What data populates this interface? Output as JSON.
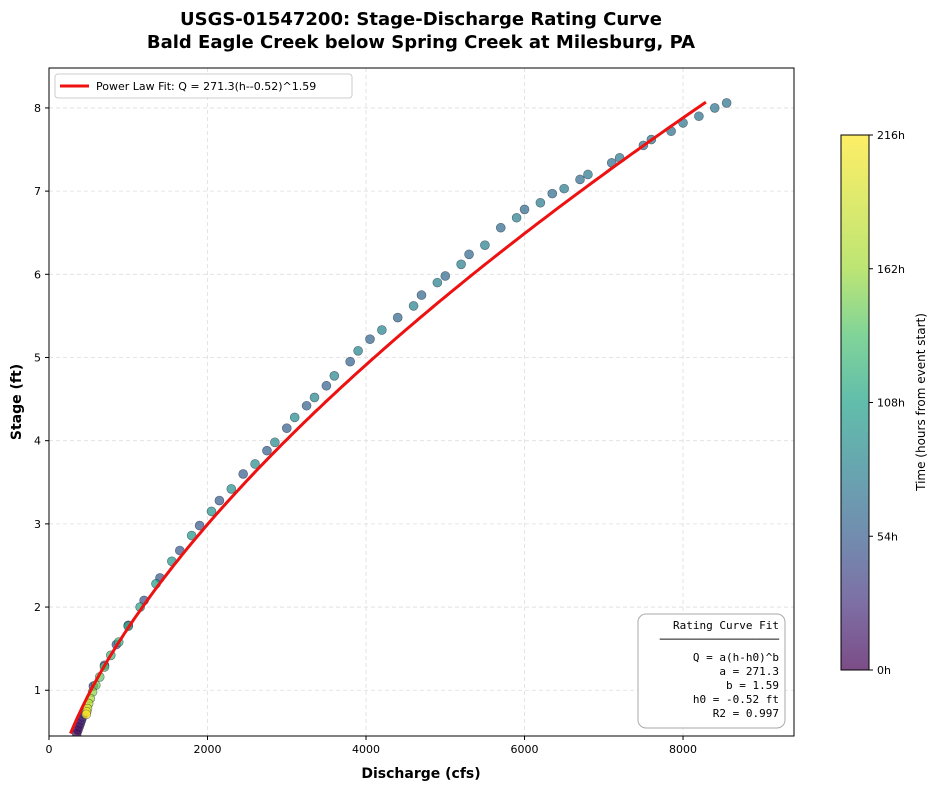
{
  "chart_data": {
    "type": "scatter",
    "title_line1": "USGS-01547200: Stage-Discharge Rating Curve",
    "title_line2": "Bald Eagle Creek below Spring Creek at Milesburg, PA",
    "xlabel": "Discharge (cfs)",
    "ylabel": "Stage (ft)",
    "xlim": [
      0,
      9400
    ],
    "ylim": [
      0.45,
      8.48
    ],
    "x_ticks": [
      0,
      2000,
      4000,
      6000,
      8000
    ],
    "y_ticks": [
      1,
      2,
      3,
      4,
      5,
      6,
      7,
      8
    ],
    "grid": true,
    "legend_position": "top-left",
    "series": [
      {
        "name": "Power Law Fit: Q = 271.3(h--0.52)^1.59",
        "type": "line",
        "color": "#ee1111",
        "model": {
          "a": 271.3,
          "b": 1.59,
          "h0": -0.52
        },
        "stage_range": [
          0.48,
          8.07
        ]
      },
      {
        "type": "scatter",
        "color_by": "time_hours",
        "points": [
          {
            "q": 350,
            "h": 0.48,
            "t": 3
          },
          {
            "q": 365,
            "h": 0.52,
            "t": 6
          },
          {
            "q": 380,
            "h": 0.56,
            "t": 10
          },
          {
            "q": 395,
            "h": 0.6,
            "t": 14
          },
          {
            "q": 410,
            "h": 0.64,
            "t": 19
          },
          {
            "q": 425,
            "h": 0.68,
            "t": 25
          },
          {
            "q": 440,
            "h": 0.72,
            "t": 30
          },
          {
            "q": 560,
            "h": 1.05,
            "t": 40
          },
          {
            "q": 700,
            "h": 1.3,
            "t": 48
          },
          {
            "q": 850,
            "h": 1.55,
            "t": 52
          },
          {
            "q": 1000,
            "h": 1.78,
            "t": 55
          },
          {
            "q": 1200,
            "h": 2.08,
            "t": 57
          },
          {
            "q": 1400,
            "h": 2.35,
            "t": 59
          },
          {
            "q": 1650,
            "h": 2.68,
            "t": 60
          },
          {
            "q": 1900,
            "h": 2.98,
            "t": 61
          },
          {
            "q": 2150,
            "h": 3.28,
            "t": 62
          },
          {
            "q": 2450,
            "h": 3.6,
            "t": 63
          },
          {
            "q": 2750,
            "h": 3.88,
            "t": 64
          },
          {
            "q": 3000,
            "h": 4.15,
            "t": 65
          },
          {
            "q": 3250,
            "h": 4.42,
            "t": 66
          },
          {
            "q": 3500,
            "h": 4.66,
            "t": 67
          },
          {
            "q": 3800,
            "h": 4.95,
            "t": 68
          },
          {
            "q": 4050,
            "h": 5.22,
            "t": 69
          },
          {
            "q": 4400,
            "h": 5.48,
            "t": 70
          },
          {
            "q": 4700,
            "h": 5.75,
            "t": 71
          },
          {
            "q": 5000,
            "h": 5.98,
            "t": 72
          },
          {
            "q": 5300,
            "h": 6.24,
            "t": 73
          },
          {
            "q": 5700,
            "h": 6.56,
            "t": 74
          },
          {
            "q": 6000,
            "h": 6.78,
            "t": 75
          },
          {
            "q": 6350,
            "h": 6.97,
            "t": 76
          },
          {
            "q": 6700,
            "h": 7.14,
            "t": 77
          },
          {
            "q": 7100,
            "h": 7.34,
            "t": 78
          },
          {
            "q": 7500,
            "h": 7.55,
            "t": 79
          },
          {
            "q": 7850,
            "h": 7.72,
            "t": 80
          },
          {
            "q": 8200,
            "h": 7.9,
            "t": 81
          },
          {
            "q": 8550,
            "h": 8.06,
            "t": 82
          },
          {
            "q": 8400,
            "h": 8.0,
            "t": 84
          },
          {
            "q": 8000,
            "h": 7.82,
            "t": 86
          },
          {
            "q": 7600,
            "h": 7.62,
            "t": 87
          },
          {
            "q": 7200,
            "h": 7.4,
            "t": 88
          },
          {
            "q": 6800,
            "h": 7.2,
            "t": 89
          },
          {
            "q": 6500,
            "h": 7.03,
            "t": 90
          },
          {
            "q": 6200,
            "h": 6.86,
            "t": 91
          },
          {
            "q": 5900,
            "h": 6.68,
            "t": 92
          },
          {
            "q": 5500,
            "h": 6.35,
            "t": 93
          },
          {
            "q": 5200,
            "h": 6.12,
            "t": 94
          },
          {
            "q": 4900,
            "h": 5.9,
            "t": 95
          },
          {
            "q": 4600,
            "h": 5.62,
            "t": 96
          },
          {
            "q": 4200,
            "h": 5.33,
            "t": 97
          },
          {
            "q": 3900,
            "h": 5.08,
            "t": 98
          },
          {
            "q": 3600,
            "h": 4.78,
            "t": 99
          },
          {
            "q": 3350,
            "h": 4.52,
            "t": 100
          },
          {
            "q": 3100,
            "h": 4.28,
            "t": 102
          },
          {
            "q": 2850,
            "h": 3.98,
            "t": 104
          },
          {
            "q": 2600,
            "h": 3.72,
            "t": 106
          },
          {
            "q": 2300,
            "h": 3.42,
            "t": 108
          },
          {
            "q": 2050,
            "h": 3.15,
            "t": 110
          },
          {
            "q": 1800,
            "h": 2.86,
            "t": 113
          },
          {
            "q": 1550,
            "h": 2.55,
            "t": 116
          },
          {
            "q": 1350,
            "h": 2.28,
            "t": 120
          },
          {
            "q": 1150,
            "h": 2.0,
            "t": 125
          },
          {
            "q": 1000,
            "h": 1.77,
            "t": 131
          },
          {
            "q": 880,
            "h": 1.58,
            "t": 138
          },
          {
            "q": 780,
            "h": 1.42,
            "t": 146
          },
          {
            "q": 700,
            "h": 1.28,
            "t": 154
          },
          {
            "q": 640,
            "h": 1.16,
            "t": 162
          },
          {
            "q": 590,
            "h": 1.06,
            "t": 170
          },
          {
            "q": 550,
            "h": 0.98,
            "t": 178
          },
          {
            "q": 520,
            "h": 0.9,
            "t": 186
          },
          {
            "q": 500,
            "h": 0.84,
            "t": 194
          },
          {
            "q": 485,
            "h": 0.78,
            "t": 202
          },
          {
            "q": 475,
            "h": 0.74,
            "t": 210
          },
          {
            "q": 470,
            "h": 0.71,
            "t": 216
          }
        ]
      }
    ],
    "colorbar": {
      "label": "Time (hours from event start)",
      "colormap": "viridis",
      "ticks": [
        "0h",
        "54h",
        "108h",
        "162h",
        "216h"
      ],
      "range": [
        0,
        216
      ]
    },
    "annotation": {
      "title": "Rating Curve Fit",
      "rule": "──────────────────",
      "lines": [
        "Q = a(h-h0)^b",
        "a = 271.3",
        "b = 1.59",
        "h0 = -0.52 ft",
        "R2 = 0.997"
      ]
    }
  }
}
